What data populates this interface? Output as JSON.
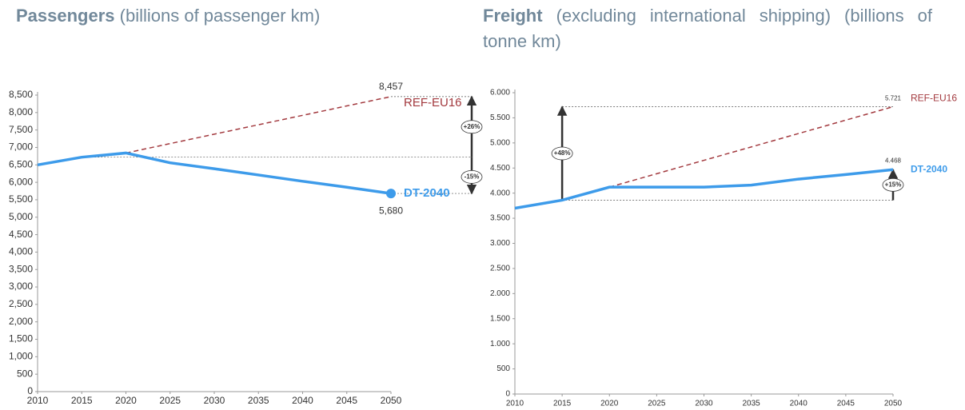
{
  "chart_data": [
    {
      "type": "line",
      "title": "Passengers",
      "subtitle": "(billions of passenger km)",
      "x": [
        2010,
        2015,
        2020,
        2025,
        2030,
        2035,
        2040,
        2045,
        2050
      ],
      "xlim": [
        2010,
        2050
      ],
      "xticks": [
        2010,
        2015,
        2020,
        2025,
        2030,
        2035,
        2040,
        2045,
        2050
      ],
      "ylim": [
        0,
        8500
      ],
      "yticks": [
        0,
        500,
        {
          "value": 1000,
          "label": "1,000"
        },
        {
          "value": 1500,
          "label": "1,500"
        },
        {
          "value": 2000,
          "label": "2,000"
        },
        {
          "value": 2500,
          "label": "2,500"
        },
        {
          "value": 3000,
          "label": "3,000"
        },
        {
          "value": 3500,
          "label": "3,500"
        },
        {
          "value": 4000,
          "label": "4,000"
        },
        {
          "value": 4500,
          "label": "4,500"
        },
        {
          "value": 5000,
          "label": "5,000"
        },
        {
          "value": 5500,
          "label": "5,500"
        },
        {
          "value": 6000,
          "label": "6,000"
        },
        {
          "value": 6500,
          "label": "6,500"
        },
        {
          "value": 7000,
          "label": "7,000"
        },
        {
          "value": 7500,
          "label": "7,500"
        },
        {
          "value": 8000,
          "label": "8,000"
        },
        {
          "value": 8500,
          "label": "8,500"
        }
      ],
      "series": [
        {
          "name": "REF-EU16",
          "color": "#a33a3f",
          "dashed": true,
          "values": [
            null,
            null,
            6840,
            7110,
            7380,
            7650,
            7920,
            8190,
            8457
          ],
          "value_labels": [
            null,
            null,
            null,
            null,
            null,
            null,
            null,
            null,
            "8,457"
          ]
        },
        {
          "name": "DT-2040",
          "color": "#3d9bea",
          "dashed": false,
          "values": [
            6500,
            6720,
            6840,
            6560,
            6390,
            6210,
            6030,
            5860,
            5680
          ],
          "value_labels": [
            null,
            null,
            null,
            null,
            null,
            null,
            null,
            null,
            "5,680"
          ]
        }
      ],
      "annotations": [
        "+26%",
        "-15%"
      ]
    },
    {
      "type": "line",
      "title": "Freight",
      "subtitle": "(excluding international shipping) (billions of tonne km)",
      "x": [
        2010,
        2015,
        2020,
        2025,
        2030,
        2035,
        2040,
        2045,
        2050
      ],
      "xlim": [
        2010,
        2050
      ],
      "xticks": [
        2010,
        2015,
        2020,
        2025,
        2030,
        2035,
        2040,
        2045,
        2050
      ],
      "ylim": [
        0,
        6000
      ],
      "yticks": [
        0,
        500,
        {
          "value": 1000,
          "label": "1.000"
        },
        {
          "value": 1500,
          "label": "1.500"
        },
        {
          "value": 2000,
          "label": "2.000"
        },
        {
          "value": 2500,
          "label": "2.500"
        },
        {
          "value": 3000,
          "label": "3.000"
        },
        {
          "value": 3500,
          "label": "3.500"
        },
        {
          "value": 4000,
          "label": "4.000"
        },
        {
          "value": 4500,
          "label": "4.500"
        },
        {
          "value": 5000,
          "label": "5.000"
        },
        {
          "value": 5500,
          "label": "5.500"
        },
        {
          "value": 6000,
          "label": "6.000"
        }
      ],
      "series": [
        {
          "name": "REF-EU16",
          "color": "#a33a3f",
          "dashed": true,
          "values": [
            null,
            null,
            4120,
            4387,
            4654,
            4920,
            5187,
            5454,
            5721
          ],
          "value_labels": [
            null,
            null,
            null,
            null,
            null,
            null,
            null,
            null,
            "5.721"
          ]
        },
        {
          "name": "DT-2040",
          "color": "#3d9bea",
          "dashed": false,
          "values": [
            3700,
            3860,
            4120,
            4120,
            4120,
            4160,
            4280,
            4370,
            4468
          ],
          "value_labels": [
            null,
            null,
            null,
            null,
            null,
            null,
            null,
            null,
            "4.468"
          ]
        }
      ],
      "annotations": [
        "+48%",
        "+15%"
      ]
    }
  ]
}
